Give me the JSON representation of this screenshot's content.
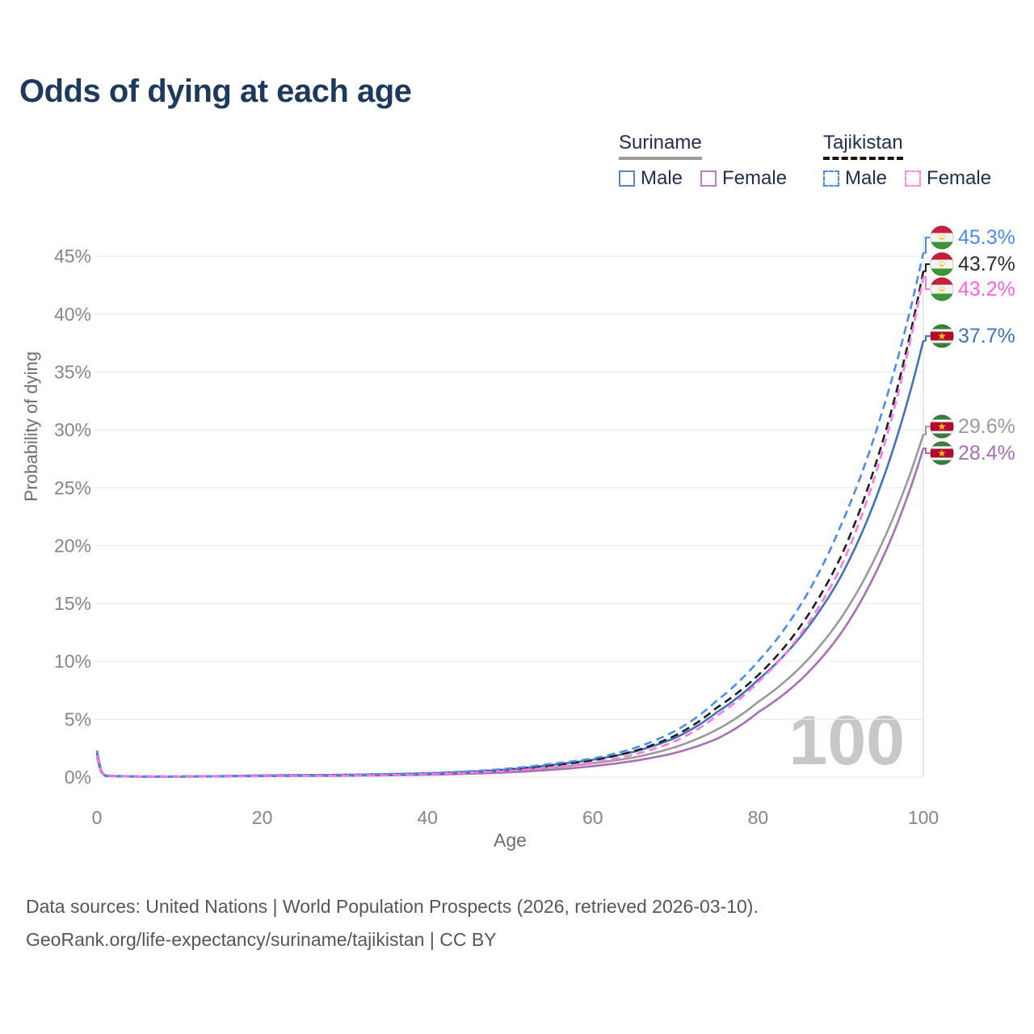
{
  "title": "Odds of dying at each age",
  "legend": {
    "groups": [
      {
        "country": "Suriname",
        "underline": "solid",
        "entries": [
          {
            "label": "Male",
            "swatch_style": "solid",
            "swatch_color": "#5b84bd"
          },
          {
            "label": "Female",
            "swatch_style": "solid",
            "swatch_color": "#bc7ec4"
          }
        ]
      },
      {
        "country": "Tajikistan",
        "underline": "dashed",
        "entries": [
          {
            "label": "Male",
            "swatch_style": "dashed",
            "swatch_color": "#4a8cf2"
          },
          {
            "label": "Female",
            "swatch_style": "dashed",
            "swatch_color": "#ff85e6"
          }
        ]
      }
    ]
  },
  "chart_data": {
    "type": "line",
    "title": "Odds of dying at each age",
    "xlabel": "Age",
    "ylabel": "Probability of dying",
    "x_ticks": [
      0,
      20,
      40,
      60,
      80,
      100
    ],
    "y_ticks_pct": [
      0,
      5,
      10,
      15,
      20,
      25,
      30,
      35,
      40,
      45
    ],
    "xlim": [
      0,
      100
    ],
    "ylim_pct": [
      0,
      46
    ],
    "grid": "horizontal-only",
    "hover_age_watermark": "100",
    "ages": [
      0,
      1,
      5,
      10,
      20,
      30,
      40,
      45,
      50,
      55,
      60,
      65,
      70,
      75,
      80,
      85,
      90,
      95,
      100
    ],
    "series": [
      {
        "id": "sr-both",
        "name": "Suriname (both sexes)",
        "country": "Suriname",
        "style": "solid",
        "color": "#9a9a9a",
        "label_color": "#9a9a9a",
        "end_label": "29.6%",
        "values": [
          1.9,
          0.11,
          0.045,
          0.045,
          0.12,
          0.16,
          0.26,
          0.37,
          0.55,
          0.82,
          1.2,
          1.7,
          2.6,
          4.1,
          6.5,
          9.4,
          13.7,
          20.2,
          29.6
        ]
      },
      {
        "id": "sr-female",
        "name": "Suriname Female",
        "country": "Suriname",
        "style": "solid",
        "color": "#a96eb5",
        "label_color": "#a96eb5",
        "end_label": "28.4%",
        "values": [
          1.7,
          0.1,
          0.04,
          0.04,
          0.09,
          0.12,
          0.2,
          0.29,
          0.42,
          0.63,
          0.95,
          1.4,
          2.1,
          3.3,
          5.6,
          8.3,
          12.4,
          18.8,
          28.4
        ]
      },
      {
        "id": "sr-male",
        "name": "Suriname Male",
        "country": "Suriname",
        "style": "solid",
        "color": "#4273b9",
        "label_color": "#4273b9",
        "end_label": "37.7%",
        "values": [
          2.1,
          0.12,
          0.05,
          0.05,
          0.15,
          0.2,
          0.32,
          0.46,
          0.68,
          1.05,
          1.5,
          2.2,
          3.4,
          5.6,
          8.4,
          12.0,
          17.3,
          25.5,
          37.7
        ]
      },
      {
        "id": "tj-both",
        "name": "Tajikistan (both sexes)",
        "country": "Tajikistan",
        "style": "dashed",
        "color": "#1f1f1f",
        "label_color": "#2d2d2d",
        "end_label": "43.7%",
        "values": [
          2.1,
          0.13,
          0.055,
          0.055,
          0.12,
          0.17,
          0.3,
          0.45,
          0.65,
          1.0,
          1.45,
          2.25,
          3.6,
          6.0,
          8.8,
          12.9,
          19.0,
          28.8,
          43.7
        ]
      },
      {
        "id": "tj-male",
        "name": "Tajikistan Male",
        "country": "Tajikistan",
        "style": "dashed",
        "color": "#4a8cf2",
        "label_color": "#4a8cf2",
        "end_label": "45.3%",
        "values": [
          2.3,
          0.15,
          0.06,
          0.06,
          0.15,
          0.2,
          0.35,
          0.5,
          0.75,
          1.15,
          1.6,
          2.5,
          4.0,
          6.6,
          10.0,
          14.7,
          21.7,
          31.5,
          45.3
        ]
      },
      {
        "id": "tj-female",
        "name": "Tajikistan Female",
        "country": "Tajikistan",
        "style": "dashed",
        "color": "#ff77e2",
        "label_color": "#ff62dd",
        "end_label": "43.2%",
        "values": [
          1.9,
          0.12,
          0.05,
          0.05,
          0.1,
          0.14,
          0.25,
          0.38,
          0.55,
          0.85,
          1.25,
          1.95,
          3.1,
          5.3,
          8.2,
          12.2,
          18.1,
          28.0,
          43.2
        ]
      }
    ]
  },
  "footer": {
    "line1": "Data sources: United Nations | World Population Prospects (2026, retrieved 2026-03-10).",
    "line2": "GeoRank.org/life-expectancy/suriname/tajikistan | CC BY"
  }
}
